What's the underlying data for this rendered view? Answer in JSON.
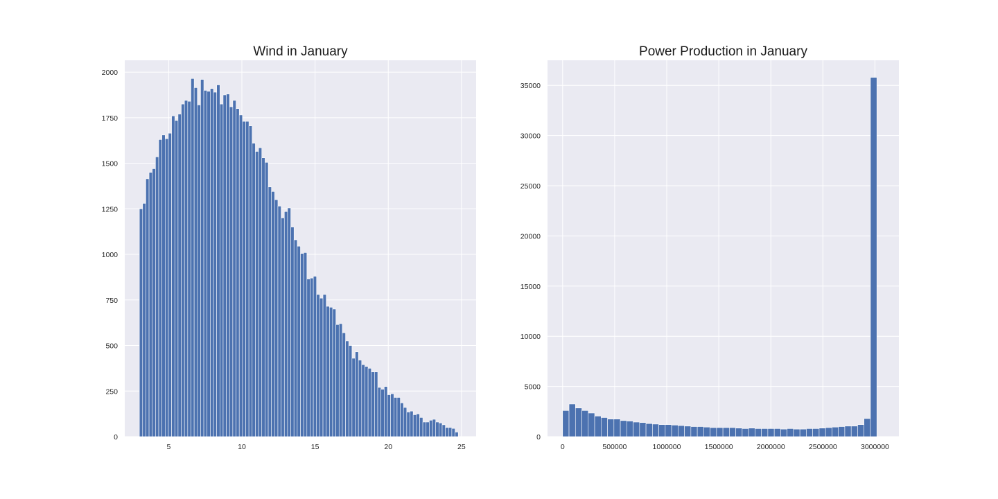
{
  "chart_data": [
    {
      "type": "bar",
      "title": "Wind in January",
      "xlabel": "",
      "ylabel": "",
      "xlim": [
        2.0,
        26.0
      ],
      "ylim": [
        0,
        2065
      ],
      "xticks": [
        5,
        10,
        15,
        20,
        25
      ],
      "xtick_labels": [
        "5",
        "10",
        "15",
        "20",
        "25"
      ],
      "yticks": [
        0,
        250,
        500,
        750,
        1000,
        1250,
        1500,
        1750,
        2000
      ],
      "ytick_labels": [
        "0",
        "250",
        "500",
        "750",
        "1000",
        "1250",
        "1500",
        "1750",
        "2000"
      ],
      "grid": true,
      "bin_start": 3.0,
      "bin_width": 0.22,
      "values": [
        1250,
        1280,
        1415,
        1450,
        1470,
        1535,
        1630,
        1655,
        1635,
        1665,
        1760,
        1735,
        1770,
        1825,
        1845,
        1840,
        1965,
        1915,
        1820,
        1960,
        1900,
        1895,
        1910,
        1890,
        1930,
        1825,
        1875,
        1880,
        1810,
        1845,
        1800,
        1765,
        1730,
        1730,
        1705,
        1610,
        1565,
        1585,
        1530,
        1505,
        1370,
        1345,
        1300,
        1265,
        1200,
        1235,
        1255,
        1150,
        1080,
        1045,
        1005,
        1010,
        865,
        870,
        880,
        780,
        760,
        780,
        715,
        710,
        700,
        615,
        620,
        570,
        525,
        500,
        430,
        465,
        420,
        395,
        385,
        375,
        355,
        355,
        270,
        260,
        275,
        230,
        235,
        215,
        215,
        185,
        160,
        135,
        140,
        120,
        125,
        105,
        80,
        80,
        90,
        95,
        80,
        75,
        65,
        50,
        50,
        45,
        25
      ]
    },
    {
      "type": "bar",
      "title": "Power Production in January",
      "xlabel": "",
      "ylabel": "",
      "xlim": [
        -145000,
        3230000
      ],
      "ylim": [
        0,
        37500
      ],
      "xticks": [
        0,
        500000,
        1000000,
        1500000,
        2000000,
        2500000,
        3000000
      ],
      "xtick_labels": [
        "0",
        "500000",
        "1000000",
        "1500000",
        "2000000",
        "2500000",
        "3000000"
      ],
      "yticks": [
        0,
        5000,
        10000,
        15000,
        20000,
        25000,
        30000,
        35000
      ],
      "ytick_labels": [
        "0",
        "5000",
        "10000",
        "15000",
        "20000",
        "25000",
        "30000",
        "35000"
      ],
      "grid": true,
      "bin_start": 0,
      "bin_width": 61600,
      "values": [
        2600,
        3250,
        2850,
        2600,
        2350,
        2050,
        1900,
        1750,
        1750,
        1600,
        1550,
        1450,
        1400,
        1300,
        1250,
        1200,
        1200,
        1150,
        1100,
        1050,
        1000,
        1000,
        950,
        900,
        900,
        900,
        900,
        850,
        800,
        850,
        800,
        800,
        800,
        800,
        750,
        800,
        750,
        750,
        800,
        800,
        850,
        900,
        950,
        1000,
        1050,
        1050,
        1200,
        1800,
        35800
      ]
    }
  ]
}
